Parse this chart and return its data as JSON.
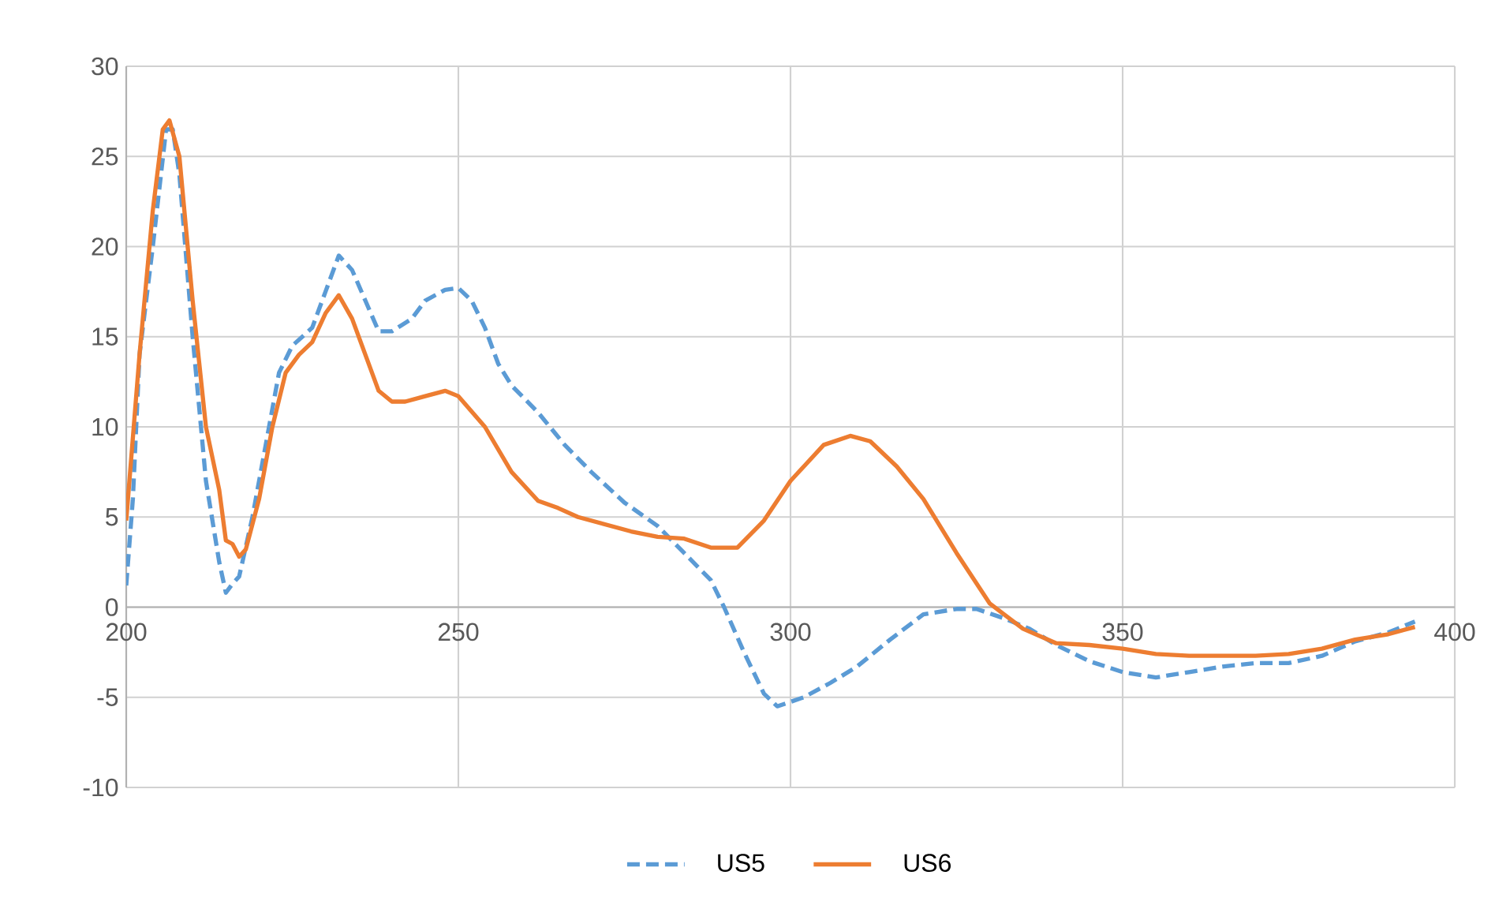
{
  "chart_data": {
    "type": "line",
    "xlim": [
      200,
      400
    ],
    "ylim": [
      -10,
      30
    ],
    "xticks": [
      200,
      250,
      300,
      350,
      400
    ],
    "yticks": [
      -10,
      -5,
      0,
      5,
      10,
      15,
      20,
      25,
      30
    ],
    "grid": true,
    "legend": "bottom",
    "marker": "none",
    "series": [
      {
        "name": "US5",
        "color": "#5b9bd5",
        "line_style": "dashed",
        "x": [
          200,
          201,
          202,
          204,
          206,
          207,
          208,
          210,
          212,
          214,
          215,
          216,
          217,
          219,
          221,
          223,
          225,
          228,
          230,
          232,
          234,
          236,
          238,
          240,
          243,
          245,
          248,
          250,
          252,
          254,
          256,
          258,
          262,
          266,
          270,
          275,
          280,
          284,
          288,
          290,
          293,
          296,
          298,
          302,
          306,
          310,
          315,
          320,
          325,
          328,
          332,
          336,
          340,
          345,
          350,
          355,
          360,
          365,
          370,
          375,
          380,
          385,
          390,
          394
        ],
        "values": [
          1.2,
          6,
          14,
          20,
          26.5,
          26.5,
          24,
          15,
          7,
          2.5,
          0.8,
          1.3,
          1.7,
          5,
          9,
          13,
          14.5,
          15.5,
          17.5,
          19.5,
          18.7,
          17,
          15.3,
          15.3,
          16,
          17,
          17.6,
          17.7,
          17,
          15.5,
          13.5,
          12.3,
          10.8,
          9,
          7.5,
          5.8,
          4.5,
          3,
          1.5,
          0,
          -2.5,
          -4.8,
          -5.5,
          -5,
          -4.2,
          -3.3,
          -1.8,
          -0.4,
          -0.1,
          -0.1,
          -0.6,
          -1.2,
          -2.1,
          -3,
          -3.6,
          -3.9,
          -3.6,
          -3.3,
          -3.1,
          -3.1,
          -2.7,
          -1.9,
          -1.4,
          -0.8
        ]
      },
      {
        "name": "US6",
        "color": "#ed7d31",
        "line_style": "solid",
        "x": [
          200,
          202,
          204,
          205.5,
          206.5,
          208,
          210,
          212,
          214,
          215,
          216,
          217,
          218,
          220,
          222,
          224,
          226,
          228,
          230,
          232,
          234,
          236,
          238,
          240,
          242,
          245,
          248,
          250,
          254,
          258,
          262,
          265,
          268,
          272,
          276,
          280,
          284,
          288,
          292,
          296,
          300,
          305,
          309,
          312,
          316,
          320,
          325,
          330,
          335,
          340,
          345,
          350,
          355,
          360,
          365,
          370,
          375,
          380,
          385,
          390,
          394
        ],
        "values": [
          4.8,
          14,
          22,
          26.5,
          27,
          25,
          17,
          10,
          6.5,
          3.7,
          3.5,
          2.8,
          3.2,
          6,
          10,
          13,
          14,
          14.7,
          16.3,
          17.3,
          16,
          14,
          12,
          11.4,
          11.4,
          11.7,
          12,
          11.7,
          10,
          7.5,
          5.9,
          5.5,
          5,
          4.6,
          4.2,
          3.9,
          3.8,
          3.3,
          3.3,
          4.8,
          7,
          9,
          9.5,
          9.2,
          7.8,
          6,
          3,
          0.2,
          -1.2,
          -2,
          -2.1,
          -2.3,
          -2.6,
          -2.7,
          -2.7,
          -2.7,
          -2.6,
          -2.3,
          -1.8,
          -1.5,
          -1.1
        ]
      }
    ]
  }
}
